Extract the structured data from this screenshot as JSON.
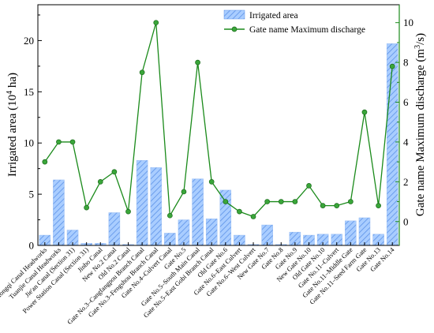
{
  "chart_data": {
    "type": "bar",
    "categories": [
      "Hongqi Canal Headworks",
      "Tuanjie Canal Headworks",
      "Jie'an Canal (Section 31)",
      "Power Station Canal (Section 31)",
      "Jinbo Canal",
      "New No.2 Canal",
      "Old No.2 Canal",
      "Gate No.3–Cangfangpou Branch Canal",
      "Gate No.3–Fengshou Branch Canal",
      "Gate No.4–Culvert Canal",
      "Gate No.5",
      "Gate No.5–South Main Canal",
      "Gate No.5–East Gobi Branch Canal",
      "Old Gate No.6",
      "Gate No.6–East Culvert",
      "Gate No.6–West Culvert",
      "New Gate No.7",
      "Gate No.8",
      "Gate No.9",
      "New Gate No.10",
      "Old Gate No.10",
      "Gate No.11–Culvert",
      "Gate No.11–Middle Gate",
      "Gate No.11–Seed Farm Gate",
      "Gate No.13",
      "Gate No.14"
    ],
    "series": [
      {
        "name": "Irrigated area",
        "type": "bar",
        "axis": "left",
        "color": "#8ab8ff",
        "values": [
          1.0,
          6.4,
          1.5,
          0.2,
          0.2,
          3.2,
          0.1,
          8.3,
          7.6,
          1.2,
          2.5,
          6.5,
          2.6,
          5.4,
          1.0,
          0.1,
          2.0,
          0.1,
          1.3,
          1.0,
          1.1,
          1.1,
          2.4,
          2.7,
          1.1,
          19.7
        ]
      },
      {
        "name": "Gate name Maximum discharge",
        "type": "line",
        "axis": "right",
        "color": "#1a8a1a",
        "values": [
          3.0,
          4.0,
          4.0,
          0.7,
          2.0,
          2.5,
          0.5,
          7.5,
          10.0,
          0.3,
          1.5,
          8.0,
          2.0,
          1.0,
          0.5,
          0.25,
          1.0,
          1.0,
          1.0,
          1.8,
          0.8,
          0.8,
          1.0,
          5.5,
          0.8,
          7.8
        ]
      }
    ],
    "ylabel": "Irrigated area (10",
    "ylabel_sup": "4",
    "ylabel_tail": " ha)",
    "y2label": "Gate name Maximum discharge (m",
    "y2label_sup": "3",
    "y2label_tail": "/s)",
    "ylim": [
      0,
      23.5
    ],
    "y2lim": [
      -1.2,
      10.9
    ],
    "yticks": [
      0,
      5,
      10,
      15,
      20
    ],
    "y2ticks": [
      0,
      2,
      4,
      6,
      8,
      10
    ],
    "legend_position": "top-right",
    "grid": false
  }
}
